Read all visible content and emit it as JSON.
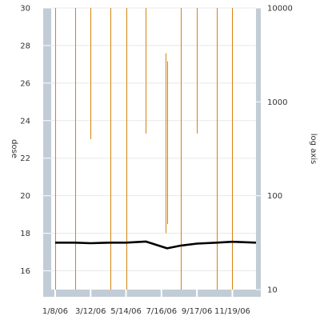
{
  "chart_data": {
    "type": "line",
    "y_left": {
      "label": "dose",
      "range": [
        15,
        30
      ],
      "ticks": [
        16,
        18,
        20,
        22,
        24,
        26,
        28,
        30
      ]
    },
    "y_right": {
      "label": "log axis",
      "scale": "log",
      "range": [
        10,
        10000
      ],
      "ticks": [
        10,
        100,
        1000,
        10000
      ]
    },
    "x": {
      "range": [
        "2006-01-01",
        "2006-12-31"
      ],
      "tick_labels": [
        "1/8/06",
        "3/12/06",
        "5/14/06",
        "7/16/06",
        "9/17/06",
        "11/19/06"
      ],
      "tick_dates": [
        "2006-01-08",
        "2006-03-12",
        "2006-05-14",
        "2006-07-16",
        "2006-09-17",
        "2006-11-19"
      ]
    },
    "series": [
      {
        "kind": "line",
        "axis": "left",
        "color": "#000000",
        "points": [
          {
            "x": "2006-01-08",
            "y": 17.5
          },
          {
            "x": "2006-02-12",
            "y": 17.5
          },
          {
            "x": "2006-03-12",
            "y": 17.47
          },
          {
            "x": "2006-04-16",
            "y": 17.5
          },
          {
            "x": "2006-05-14",
            "y": 17.5
          },
          {
            "x": "2006-06-18",
            "y": 17.56
          },
          {
            "x": "2006-07-26",
            "y": 17.2
          },
          {
            "x": "2006-08-20",
            "y": 17.35
          },
          {
            "x": "2006-09-17",
            "y": 17.45
          },
          {
            "x": "2006-10-22",
            "y": 17.5
          },
          {
            "x": "2006-11-19",
            "y": 17.55
          },
          {
            "x": "2006-12-31",
            "y": 17.5
          }
        ]
      },
      {
        "kind": "vertical-bars",
        "axis": "right",
        "color": "#d4840e",
        "bars": [
          {
            "x": "2006-01-08",
            "low": 10,
            "high": 10000
          },
          {
            "x": "2006-02-12",
            "low": 10,
            "high": 10000
          },
          {
            "x": "2006-03-12",
            "low": 400,
            "high": 10000
          },
          {
            "x": "2006-04-16",
            "low": 10,
            "high": 10000
          },
          {
            "x": "2006-05-14",
            "low": 10,
            "high": 10000
          },
          {
            "x": "2006-06-18",
            "low": 460,
            "high": 10000
          },
          {
            "x": "2006-07-24",
            "low": 40,
            "high": 3300
          },
          {
            "x": "2006-07-26",
            "low": 50,
            "high": 2700
          },
          {
            "x": "2006-08-20",
            "low": 10,
            "high": 10000
          },
          {
            "x": "2006-09-17",
            "low": 460,
            "high": 10000
          },
          {
            "x": "2006-10-22",
            "low": 10,
            "high": 10000
          },
          {
            "x": "2006-11-19",
            "low": 10,
            "high": 10000
          }
        ]
      }
    ],
    "grid": true,
    "colors": {
      "axis_band": "#c2ccd6",
      "grid": "#e8e8e8",
      "line": "#000000",
      "bars": "#d4840e"
    }
  }
}
